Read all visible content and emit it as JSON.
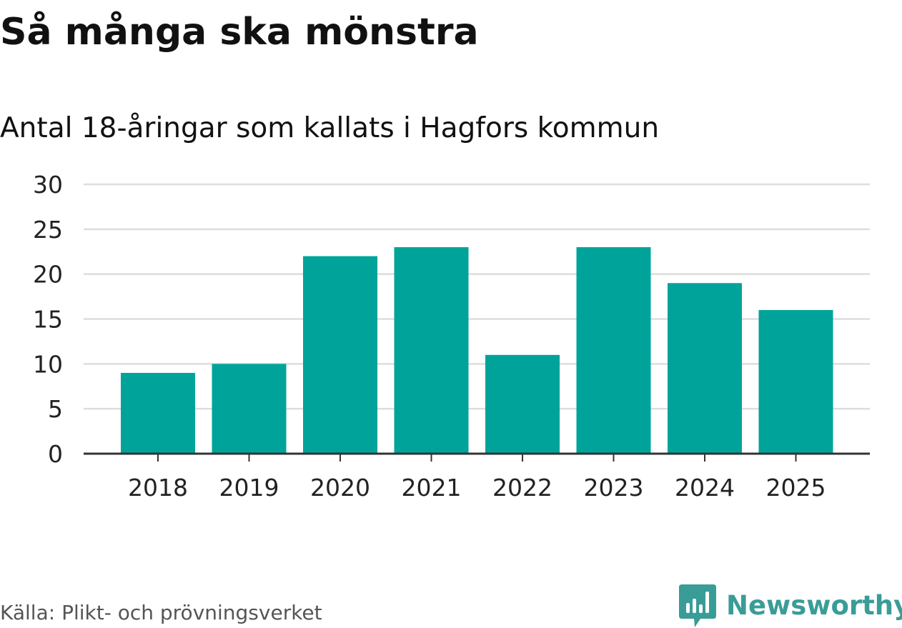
{
  "title": "Så många ska mönstra",
  "subtitle": "Antal 18-åringar som kallats i Hagfors kommun",
  "source": "Källa: Plikt- och prövningsverket",
  "brand": {
    "name": "Newsworthy",
    "icon": "newsworthy-logo-icon",
    "color": "#3a9c97"
  },
  "colors": {
    "bar": "#00a39a",
    "grid": "#dddddd",
    "axis": "#333333",
    "tick_text": "#222222"
  },
  "chart_data": {
    "type": "bar",
    "categories": [
      "2018",
      "2019",
      "2020",
      "2021",
      "2022",
      "2023",
      "2024",
      "2025"
    ],
    "values": [
      9,
      10,
      22,
      23,
      11,
      23,
      19,
      16
    ],
    "ylim": [
      0,
      30
    ],
    "yticks": [
      0,
      5,
      10,
      15,
      20,
      25,
      30
    ],
    "grid": true,
    "legend": "none",
    "xlabel": "",
    "ylabel": ""
  }
}
